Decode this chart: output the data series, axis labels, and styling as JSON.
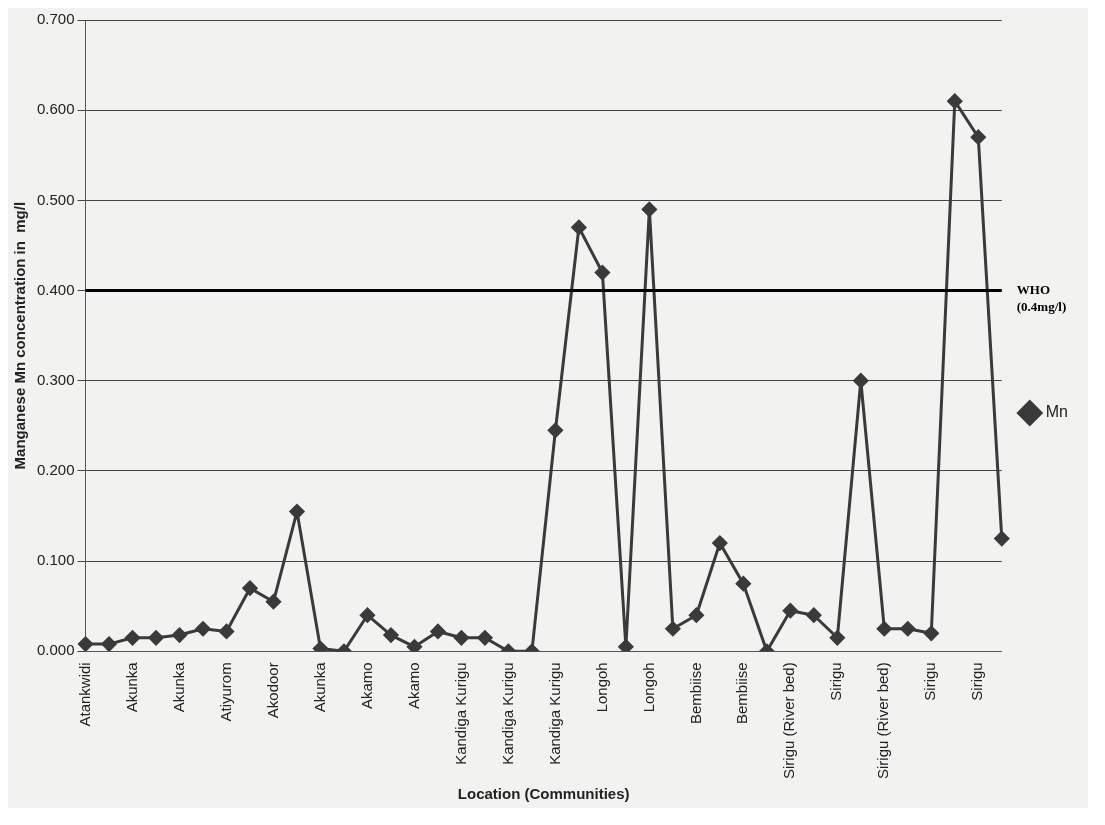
{
  "chart_data": {
    "type": "line",
    "xlabel": "Location (Communities)",
    "ylabel": "Manganese Mn concentration in  mg/l",
    "categories": [
      "Atankwidi",
      null,
      "Akunka",
      null,
      "Akunka",
      null,
      "Atiyurom",
      null,
      "Akodoor",
      null,
      "Akunka",
      null,
      "Akamo",
      null,
      "Akamo",
      null,
      "Kandiga Kurigu",
      null,
      "Kandiga Kurigu",
      null,
      "Kandiga Kurigu",
      null,
      "Longoh",
      null,
      "Longoh",
      null,
      "Bembiise",
      null,
      "Bembiise",
      null,
      "Sirigu (River bed)",
      null,
      "Sirigu",
      null,
      "Sirigu (River bed)",
      null,
      "Sirigu",
      null,
      "Sirigu",
      null
    ],
    "series": [
      {
        "name": "Mn",
        "color": "#3a3a3a",
        "values": [
          0.008,
          0.008,
          0.015,
          0.015,
          0.018,
          0.025,
          0.022,
          0.07,
          0.055,
          0.155,
          0.003,
          0.0,
          0.04,
          0.018,
          0.005,
          0.022,
          0.015,
          0.015,
          0.0,
          0.0,
          0.245,
          0.47,
          0.42,
          0.005,
          0.49,
          0.025,
          0.04,
          0.12,
          0.075,
          0.0,
          0.045,
          0.04,
          0.015,
          0.3,
          0.025,
          0.025,
          0.02,
          0.61,
          0.57,
          0.125
        ]
      }
    ],
    "ylim": [
      0,
      0.7
    ],
    "yticks": [
      {
        "value": 0,
        "label": "0.000"
      },
      {
        "value": 0.1,
        "label": "0.100"
      },
      {
        "value": 0.2,
        "label": "0.200"
      },
      {
        "value": 0.3,
        "label": "0.300"
      },
      {
        "value": 0.4,
        "label": "0.400"
      },
      {
        "value": 0.5,
        "label": "0.500"
      },
      {
        "value": 0.6,
        "label": "0.600"
      },
      {
        "value": 0.7,
        "label": "0.700"
      }
    ],
    "ref_lines": [
      {
        "axis": "y",
        "value": 0.4,
        "label": "WHO (0.4mg/l)",
        "color": "#000000"
      }
    ],
    "grid": "y",
    "legend": "right",
    "marker": "diamond",
    "line_style": "solid"
  }
}
